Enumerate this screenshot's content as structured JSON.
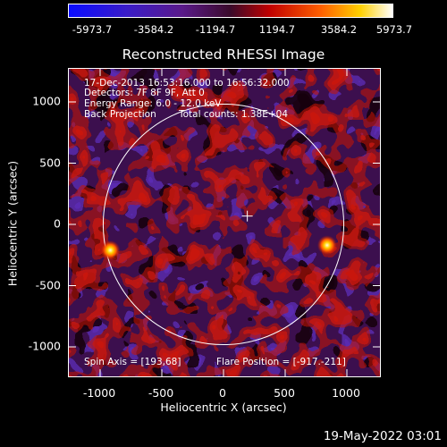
{
  "colorbar": {
    "ticks": [
      "-5973.7",
      "-3584.2",
      "-1194.7",
      "1194.7",
      "3584.2",
      "5973.7"
    ],
    "range": [
      -5973.7,
      5973.7
    ]
  },
  "chart_data": {
    "type": "heatmap",
    "title": "Reconstructed RHESSI Image",
    "xlabel": "Heliocentric X (arcsec)",
    "ylabel": "Heliocentric Y (arcsec)",
    "xlim": [
      -1300,
      1300
    ],
    "ylim": [
      -1300,
      1300
    ],
    "x_ticks": [
      "-1000",
      "-500",
      "0",
      "500",
      "1000"
    ],
    "y_ticks": [
      "1000",
      "500",
      "0",
      "-500",
      "-1000"
    ],
    "solar_limb_radius_arcsec": 975,
    "spin_axis_marker": [
      193,
      68
    ],
    "sources": [
      {
        "x": -917,
        "y": -211
      },
      {
        "x": 840,
        "y": -170
      }
    ]
  },
  "info": {
    "time_range": "17-Dec-2013 16:53:16.000 to 16:56:32.000",
    "detectors": "Detectors: 7F 8F 9F, Att 0",
    "energy": "Energy Range: 6.0 - 12.0 keV",
    "method": "Back Projection",
    "counts": "Total counts: 1.38E+04",
    "spin_axis": "Spin Axis = [193,68]",
    "flare_position": "Flare Position = [-917.-211]"
  },
  "date": "19-May-2022 03:01"
}
